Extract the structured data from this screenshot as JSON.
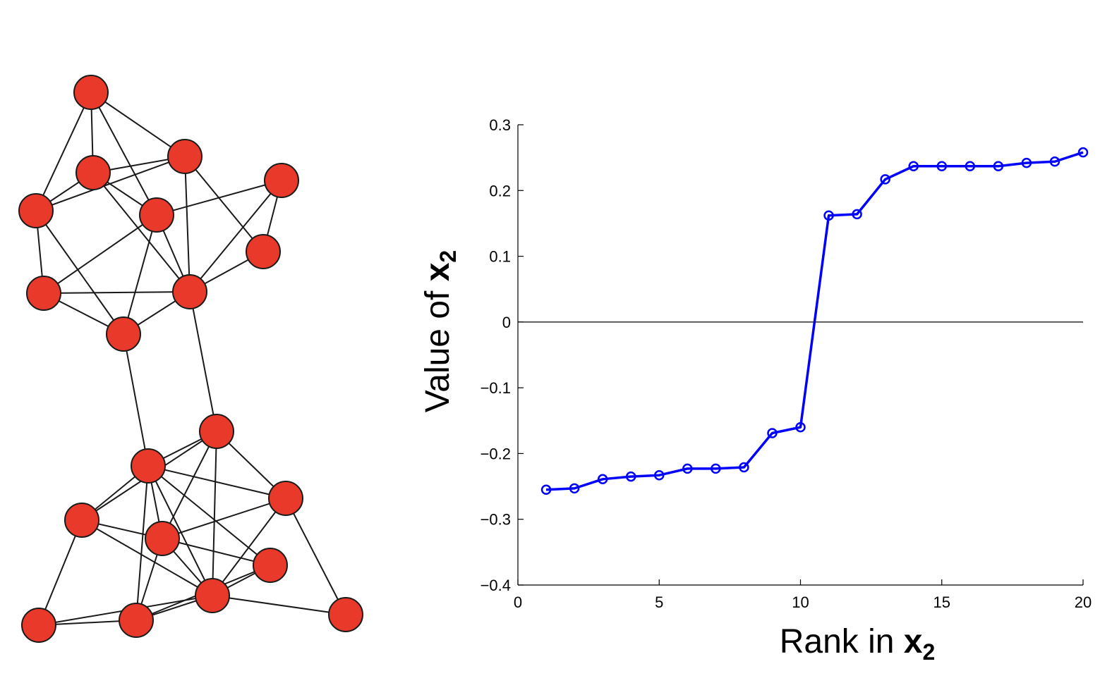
{
  "figure": {
    "node_color": "#e8392a",
    "edge_color": "#1a1a1a",
    "series_color": "#0000ff",
    "graph": {
      "node_count": 20,
      "edge_count": 51,
      "bridge_edges": 2
    }
  },
  "chart_data": {
    "type": "line",
    "xlabel": "Rank in x₂",
    "xlabel_parts": {
      "text": "Rank in ",
      "var": "x",
      "sub": "2"
    },
    "ylabel": "Value of x₂",
    "ylabel_parts": {
      "text": "Value of ",
      "var": "x",
      "sub": "2"
    },
    "xlim": [
      0,
      20
    ],
    "ylim": [
      -0.4,
      0.3
    ],
    "x_ticks": [
      "0",
      "5",
      "10",
      "15",
      "20"
    ],
    "y_ticks": [
      "0.3",
      "0.2",
      "0.1",
      "0",
      "−0.1",
      "−0.2",
      "−0.3",
      "−0.4"
    ],
    "grid": false,
    "zero_line": true,
    "marker": "circle",
    "series": [
      {
        "x": [
          1,
          2,
          3,
          4,
          5,
          6,
          7,
          8,
          9,
          10,
          11,
          12,
          13,
          14,
          15,
          16,
          17,
          18,
          19,
          20
        ],
        "values": [
          -0.255,
          -0.253,
          -0.239,
          -0.235,
          -0.233,
          -0.223,
          -0.223,
          -0.221,
          -0.169,
          -0.16,
          0.162,
          0.164,
          0.217,
          0.237,
          0.237,
          0.237,
          0.237,
          0.242,
          0.244,
          0.258
        ]
      }
    ]
  }
}
